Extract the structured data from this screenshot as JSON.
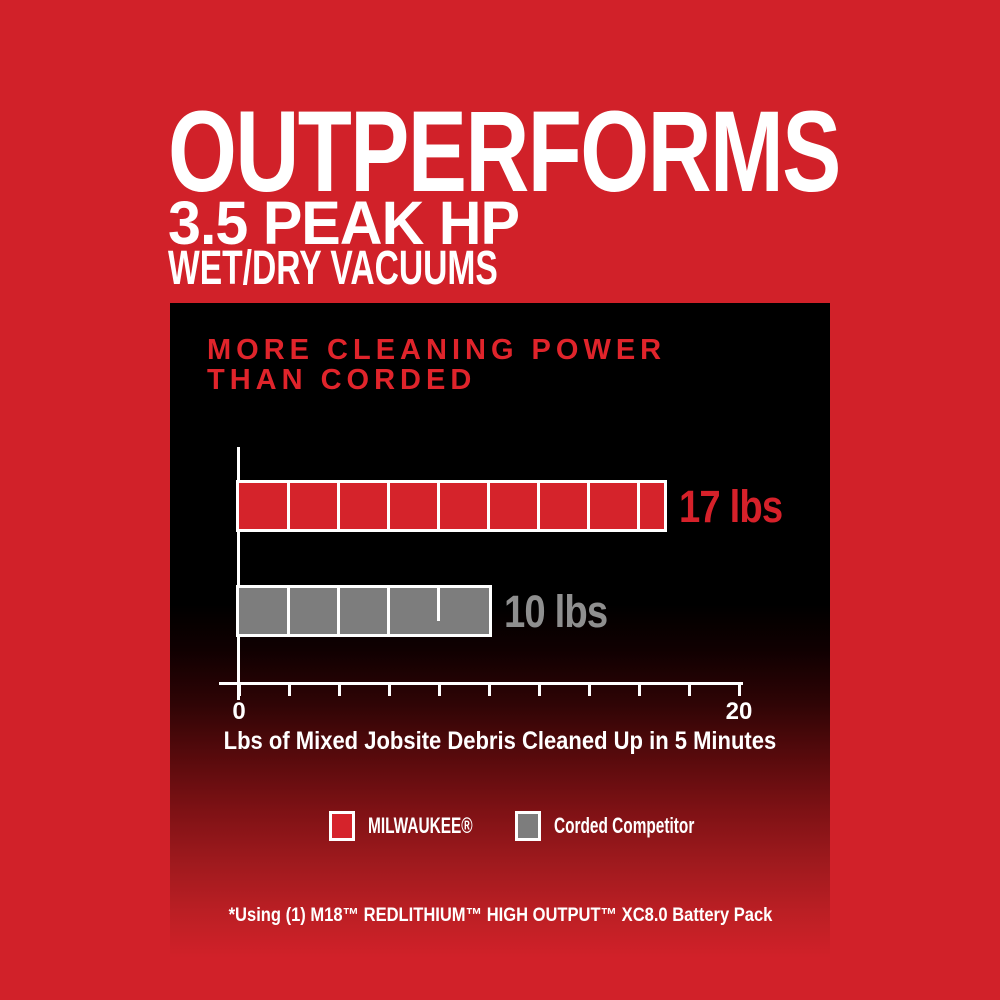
{
  "header": {
    "line1": "OUTPERFORMS",
    "line2": "3.5 PEAK HP",
    "line3": "WET/DRY VACUUMS"
  },
  "chart_data": {
    "type": "bar",
    "orientation": "horizontal",
    "title": "MORE CLEANING POWER THAN CORDED",
    "title_line1": "MORE CLEANING POWER",
    "title_line2": "THAN CORDED",
    "xlabel": "Lbs of Mixed Jobsite Debris Cleaned Up in 5 Minutes",
    "categories": [
      "MILWAUKEE®",
      "Corded Competitor"
    ],
    "values": [
      17,
      10
    ],
    "segment_lbs": 2,
    "series": [
      {
        "name": "MILWAUKEE®",
        "value_lbs": 17,
        "label": "17 lbs",
        "color": "#d5232b",
        "label_color": "#d6212a",
        "swatch_name": "milwaukee"
      },
      {
        "name": "Corded Competitor",
        "value_lbs": 10,
        "label": "10 lbs",
        "color": "#7d7d7d",
        "label_color": "#8f8f8f",
        "partial_divider_at_lbs": 8,
        "swatch_name": "competitor"
      }
    ],
    "x_axis": {
      "min": 0,
      "max": 20,
      "tick_step_lbs": 2,
      "labeled_ticks": [
        {
          "value": 0,
          "label": "0"
        },
        {
          "value": 20,
          "label": "20"
        }
      ]
    },
    "grid": false,
    "legend_position": "bottom"
  },
  "footnote": "*Using (1) M18™ REDLITHIUM™ HIGH OUTPUT™ XC8.0 Battery Pack",
  "colors": {
    "background_red": "#d12129",
    "panel_top": "#000000",
    "milwaukee_red": "#d5232b",
    "competitor_gray": "#7d7d7d",
    "title_red": "#e0242b",
    "white_text": "#ffffff"
  }
}
